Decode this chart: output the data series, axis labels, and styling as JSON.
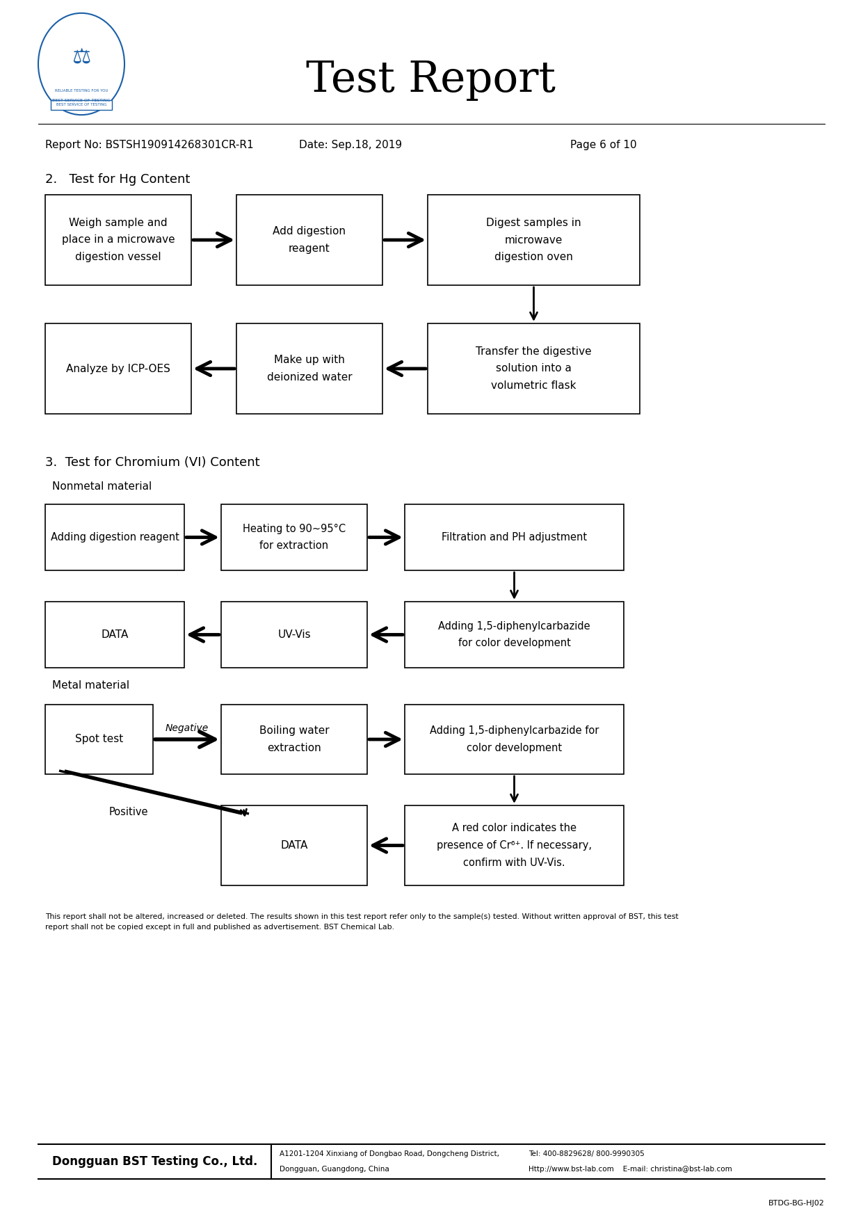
{
  "title": "Test Report",
  "report_no": "Report No: BSTSH190914268301CR-R1",
  "date": "Date: Sep.18, 2019",
  "page": "Page 6 of 10",
  "section2_title": "2.   Test for Hg Content",
  "section3_title": "3.  Test for Chromium (VI) Content",
  "nonmetal_label": "Nonmetal material",
  "metal_label": "Metal material",
  "footer_text": "This report shall not be altered, increased or deleted. The results shown in this test report refer only to the sample(s) tested. Without written approval of BST, this test\nreport shall not be copied except in full and published as advertisement. BST Chemical Lab.",
  "company_name": "Dongguan BST Testing Co., Ltd.",
  "address_line1": "A1201-1204 Xinxiang of Dongbao Road, Dongcheng District,",
  "address_line2": "Dongguan, Guangdong, China",
  "contact_line1": "Tel: 400-8829628/ 800-9990305",
  "contact_line2": "Http://www.bst-lab.com    E-mail: christina@bst-lab.com",
  "doc_id": "BTDG-BG-HJ02",
  "bg_color": "#ffffff",
  "logo_color": "#1a5fa8"
}
